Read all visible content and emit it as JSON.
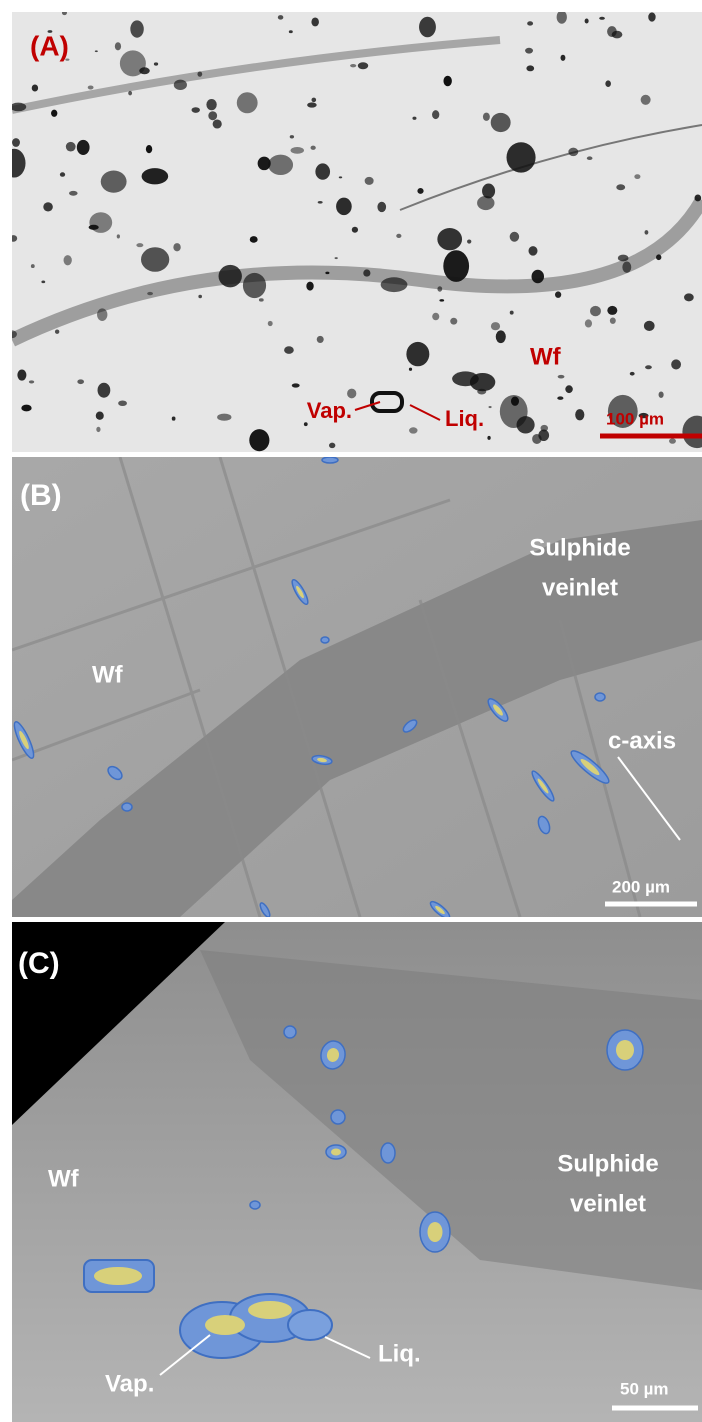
{
  "panels": [
    {
      "label": "(A)",
      "annotations": {
        "wf": "Wf",
        "vap": "Vap.",
        "liq": "Liq."
      },
      "scale_bar": "100 µm"
    },
    {
      "label": "(B)",
      "annotations": {
        "veinlet": [
          "Sulphide",
          "veinlet"
        ],
        "wf": "Wf",
        "c_axis": "c-axis"
      },
      "scale_bar": "200 µm"
    },
    {
      "label": "(C)",
      "annotations": {
        "wf": "Wf",
        "veinlet": [
          "Sulphide",
          "veinlet"
        ],
        "vap": "Vap.",
        "liq": "Liq."
      },
      "scale_bar": "50 µm"
    }
  ]
}
